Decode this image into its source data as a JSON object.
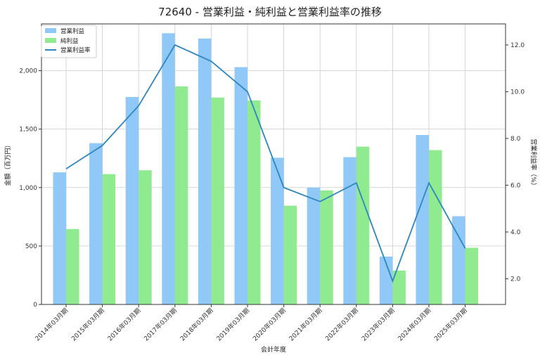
{
  "chart_data": {
    "type": "bar",
    "title": "72640 - 営業利益・純利益と営業利益率の推移",
    "xlabel": "会計年度",
    "ylabel": "金額（百万円）",
    "y2label": "営業利益率（%）",
    "categories": [
      "2014年03月期",
      "2015年03月期",
      "2016年03月期",
      "2017年03月期",
      "2018年03月期",
      "2019年03月期",
      "2020年03月期",
      "2021年03月期",
      "2022年03月期",
      "2023年03月期",
      "2024年03月期",
      "2025年03月期"
    ],
    "series": [
      {
        "name": "営業利益",
        "type": "bar",
        "axis": "left",
        "color": "#90c9f7",
        "values": [
          1130,
          1380,
          1775,
          2320,
          2275,
          2030,
          1255,
          1000,
          1260,
          410,
          1450,
          755
        ]
      },
      {
        "name": "純利益",
        "type": "bar",
        "axis": "left",
        "color": "#90ea8f",
        "values": [
          645,
          1115,
          1148,
          1865,
          1770,
          1745,
          845,
          975,
          1350,
          290,
          1320,
          485
        ]
      },
      {
        "name": "営業利益率",
        "type": "line",
        "axis": "right",
        "color": "#2e86c1",
        "values": [
          6.7,
          7.7,
          9.4,
          12.0,
          11.3,
          10.0,
          5.9,
          5.3,
          6.1,
          1.9,
          6.1,
          3.3
        ]
      }
    ],
    "ylim": [
      0,
      2400
    ],
    "yticks": [
      0,
      500,
      1000,
      1500,
      2000
    ],
    "ytick_labels": [
      "0",
      "500",
      "1,000",
      "1,500",
      "2,000"
    ],
    "y2lim": [
      0.9,
      12.9
    ],
    "y2ticks": [
      2,
      4,
      6,
      8,
      10,
      12
    ],
    "y2tick_labels": [
      "2.0",
      "4.0",
      "6.0",
      "8.0",
      "10.0",
      "12.0"
    ],
    "grid": true,
    "legend_position": "top-left"
  }
}
